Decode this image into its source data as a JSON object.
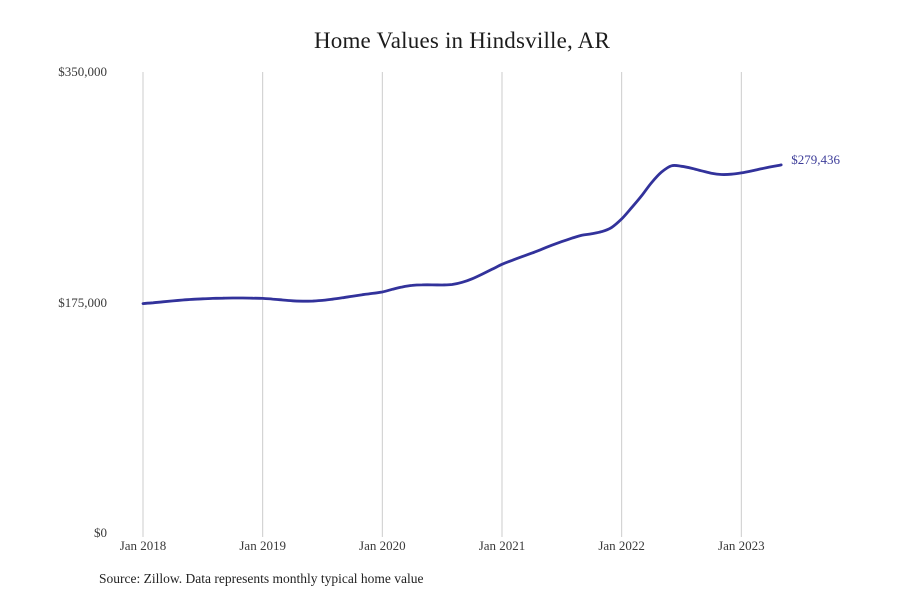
{
  "chart_data": {
    "type": "line",
    "title": "Home Values in Hindsville, AR",
    "x_start": "Jan 2018",
    "x_end": "May 2023",
    "frequency": "monthly",
    "ylim": [
      0,
      350000
    ],
    "grid": "vertical-only",
    "line_color": "#32329b",
    "grid_color": "#cccccc",
    "end_label": "$279,436",
    "end_value": 279436,
    "y_ticks": [
      {
        "value": 350000,
        "label": "$350,000"
      },
      {
        "value": 175000,
        "label": "$175,000"
      },
      {
        "value": 0,
        "label": "$0"
      }
    ],
    "x_ticks": [
      {
        "month_index": 0,
        "label": "Jan 2018"
      },
      {
        "month_index": 12,
        "label": "Jan 2019"
      },
      {
        "month_index": 24,
        "label": "Jan 2020"
      },
      {
        "month_index": 36,
        "label": "Jan 2021"
      },
      {
        "month_index": 48,
        "label": "Jan 2022"
      },
      {
        "month_index": 60,
        "label": "Jan 2023"
      }
    ],
    "series": [
      {
        "name": "Typical home value",
        "values": [
          174200,
          174800,
          175500,
          176200,
          176900,
          177400,
          177800,
          178100,
          178300,
          178400,
          178400,
          178300,
          178100,
          177600,
          176900,
          176300,
          176000,
          176100,
          176600,
          177500,
          178600,
          179800,
          180900,
          181900,
          183000,
          185000,
          186800,
          188000,
          188400,
          188400,
          188300,
          188700,
          190300,
          193000,
          196500,
          200200,
          204000,
          207000,
          209800,
          212500,
          215500,
          218500,
          221200,
          223800,
          226000,
          227200,
          228800,
          232000,
          238500,
          247000,
          256000,
          266000,
          274000,
          278800,
          278400,
          277000,
          275000,
          273200,
          272200,
          272400,
          273400,
          274800,
          276500,
          278000,
          279436
        ]
      }
    ]
  },
  "source_note": "Source: Zillow. Data represents monthly typical home value"
}
